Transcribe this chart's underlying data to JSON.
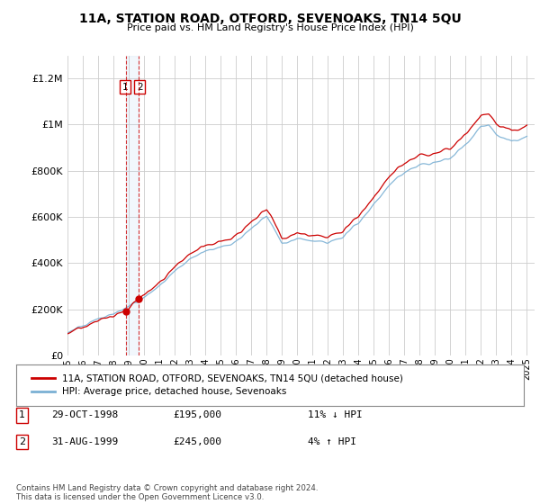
{
  "title": "11A, STATION ROAD, OTFORD, SEVENOAKS, TN14 5QU",
  "subtitle": "Price paid vs. HM Land Registry's House Price Index (HPI)",
  "ylabel_ticks": [
    "£0",
    "£200K",
    "£400K",
    "£600K",
    "£800K",
    "£1M",
    "£1.2M"
  ],
  "ytick_values": [
    0,
    200000,
    400000,
    600000,
    800000,
    1000000,
    1200000
  ],
  "ylim": [
    0,
    1300000
  ],
  "xlim_start": 1995.0,
  "xlim_end": 2025.5,
  "x_tick_labels": [
    "1995",
    "1996",
    "1997",
    "1998",
    "1999",
    "2000",
    "2001",
    "2002",
    "2003",
    "2004",
    "2005",
    "2006",
    "2007",
    "2008",
    "2009",
    "2010",
    "2011",
    "2012",
    "2013",
    "2014",
    "2015",
    "2016",
    "2017",
    "2018",
    "2019",
    "2020",
    "2021",
    "2022",
    "2023",
    "2024",
    "2025"
  ],
  "transaction1_date": 1998.83,
  "transaction1_price": 195000,
  "transaction2_date": 1999.67,
  "transaction2_price": 245000,
  "house_color": "#cc0000",
  "hpi_color": "#7ab0d4",
  "legend_house": "11A, STATION ROAD, OTFORD, SEVENOAKS, TN14 5QU (detached house)",
  "legend_hpi": "HPI: Average price, detached house, Sevenoaks",
  "table_row1": [
    "1",
    "29-OCT-1998",
    "£195,000",
    "11% ↓ HPI"
  ],
  "table_row2": [
    "2",
    "31-AUG-1999",
    "£245,000",
    "4% ↑ HPI"
  ],
  "footer": "Contains HM Land Registry data © Crown copyright and database right 2024.\nThis data is licensed under the Open Government Licence v3.0.",
  "background_color": "#ffffff",
  "grid_color": "#cccccc",
  "dashed_line_color": "#cc0000",
  "dashed_fill_color": "#aaccee"
}
